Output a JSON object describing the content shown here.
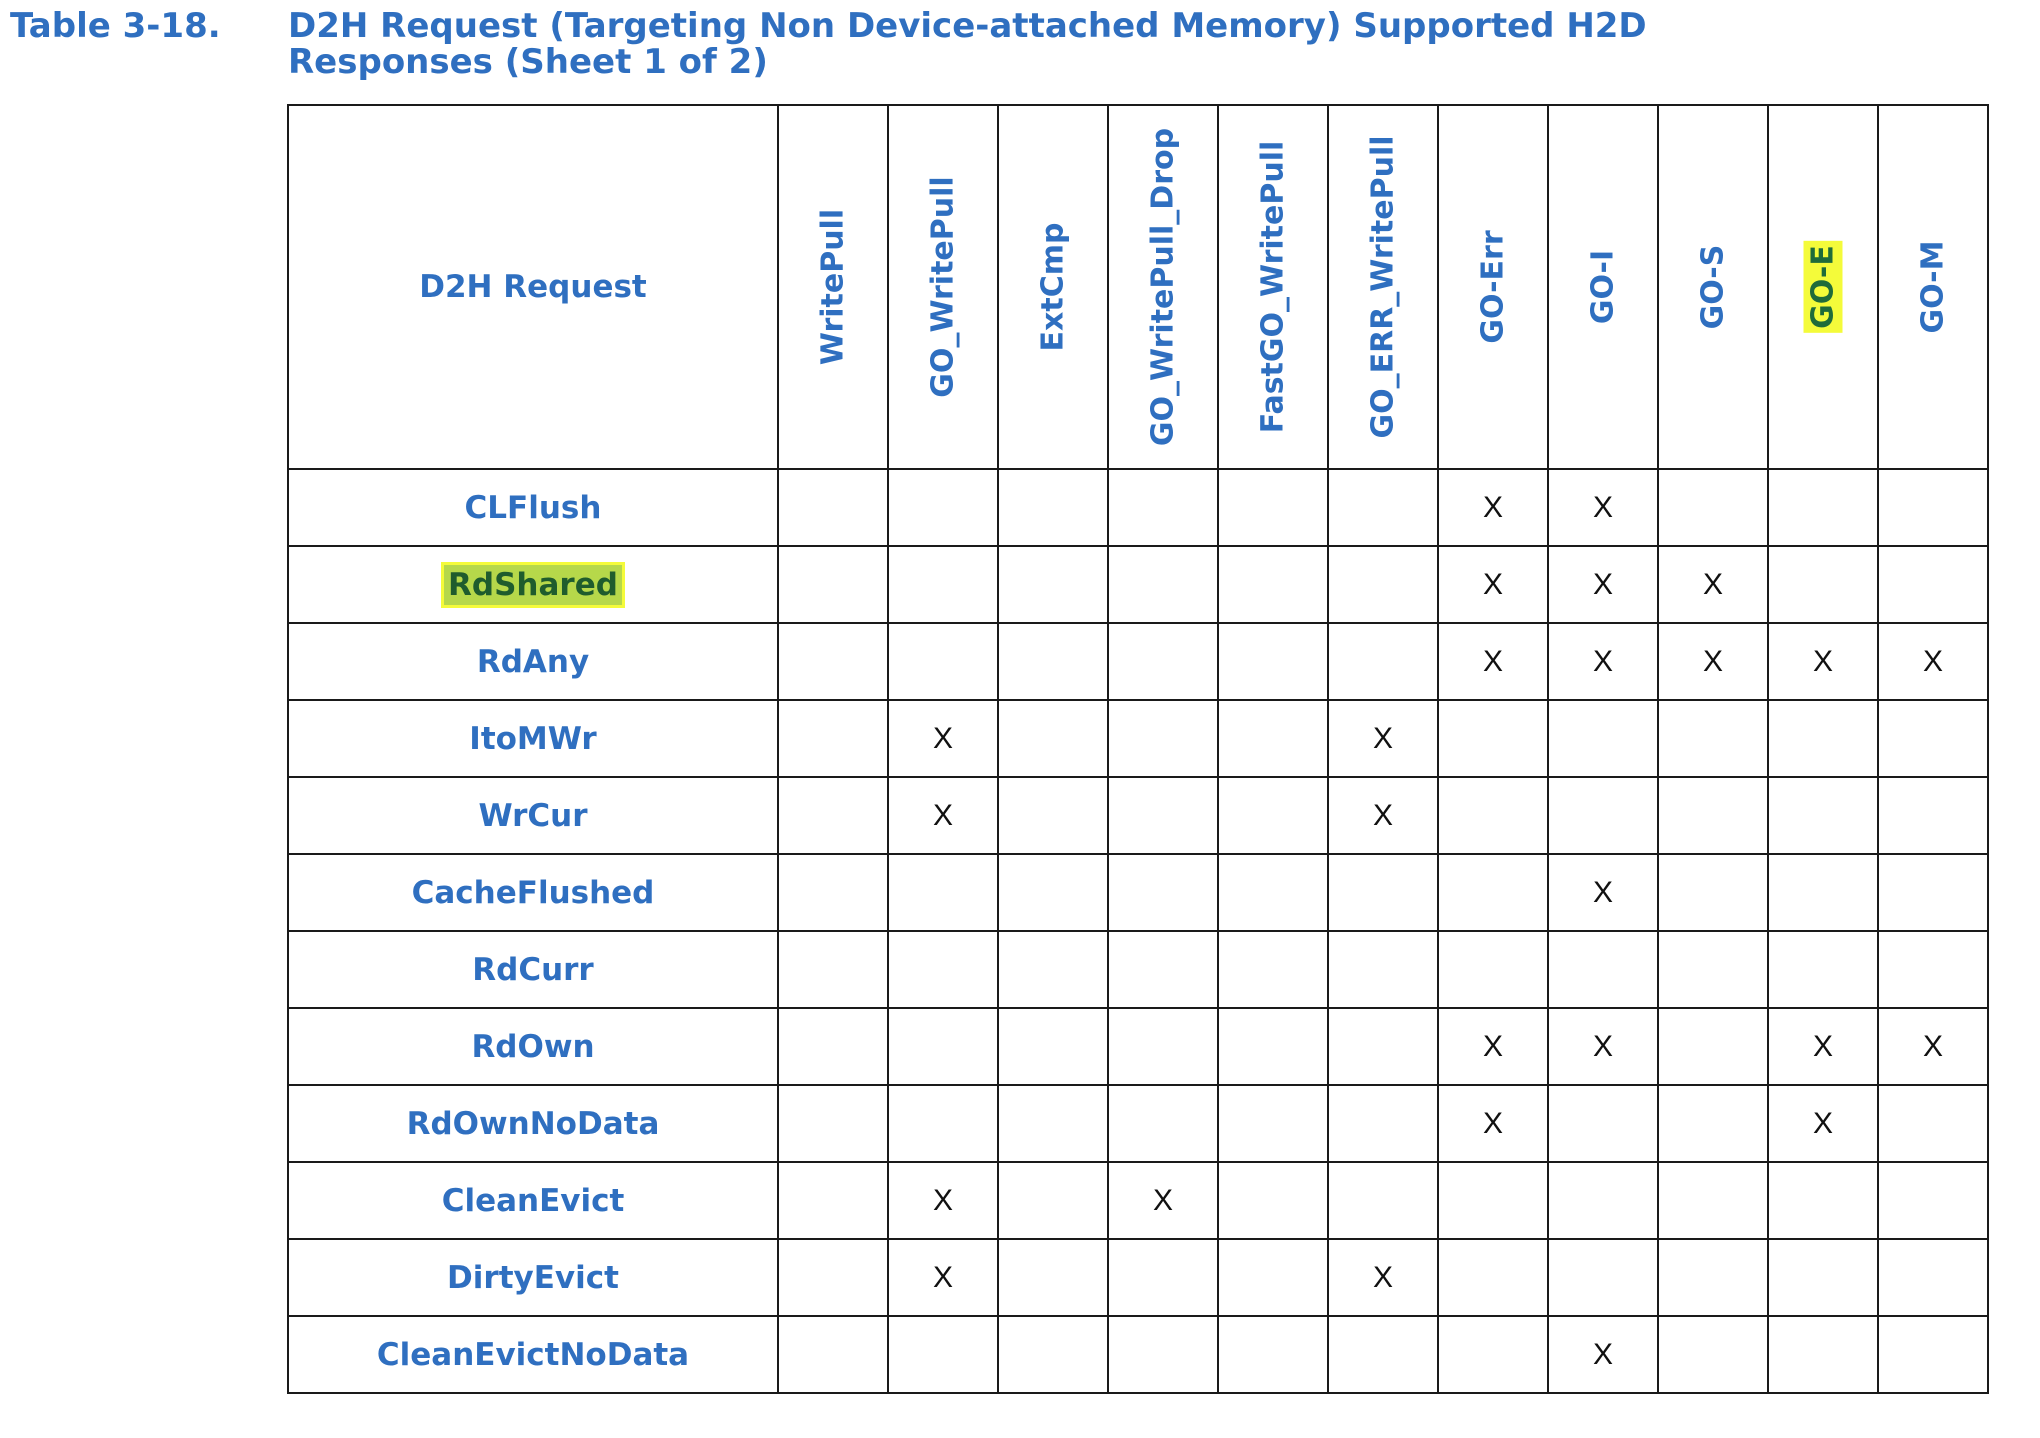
{
  "caption": {
    "number": "Table 3-18.",
    "title": "D2H Request (Targeting Non Device-attached Memory) Supported H2D Responses (Sheet 1 of 2)"
  },
  "table": {
    "row_header": "D2H Request",
    "columns": [
      "WritePull",
      "GO_WritePull",
      "ExtCmp",
      "GO_WritePull_Drop",
      "FastGO_WritePull",
      "GO_ERR_WritePull",
      "GO-Err",
      "GO-I",
      "GO-S",
      "GO-E",
      "GO-M"
    ],
    "highlighted_column": "GO-E",
    "rows": [
      {
        "name": "CLFlush",
        "cells": [
          "",
          "",
          "",
          "",
          "",
          "",
          "X",
          "X",
          "",
          "",
          ""
        ]
      },
      {
        "name": "RdShared",
        "cells": [
          "",
          "",
          "",
          "",
          "",
          "",
          "X",
          "X",
          "X",
          "",
          ""
        ],
        "highlighted": true
      },
      {
        "name": "RdAny",
        "cells": [
          "",
          "",
          "",
          "",
          "",
          "",
          "X",
          "X",
          "X",
          "X",
          "X"
        ]
      },
      {
        "name": "ItoMWr",
        "cells": [
          "",
          "X",
          "",
          "",
          "",
          "X",
          "",
          "",
          "",
          "",
          ""
        ]
      },
      {
        "name": "WrCur",
        "cells": [
          "",
          "X",
          "",
          "",
          "",
          "X",
          "",
          "",
          "",
          "",
          ""
        ]
      },
      {
        "name": "CacheFlushed",
        "cells": [
          "",
          "",
          "",
          "",
          "",
          "",
          "",
          "X",
          "",
          "",
          ""
        ]
      },
      {
        "name": "RdCurr",
        "cells": [
          "",
          "",
          "",
          "",
          "",
          "",
          "",
          "",
          "",
          "",
          ""
        ]
      },
      {
        "name": "RdOwn",
        "cells": [
          "",
          "",
          "",
          "",
          "",
          "",
          "X",
          "X",
          "",
          "X",
          "X"
        ]
      },
      {
        "name": "RdOwnNoData",
        "cells": [
          "",
          "",
          "",
          "",
          "",
          "",
          "X",
          "",
          "",
          "X",
          ""
        ]
      },
      {
        "name": "CleanEvict",
        "cells": [
          "",
          "X",
          "",
          "X",
          "",
          "",
          "",
          "",
          "",
          "",
          ""
        ]
      },
      {
        "name": "DirtyEvict",
        "cells": [
          "",
          "X",
          "",
          "",
          "",
          "X",
          "",
          "",
          "",
          "",
          ""
        ]
      },
      {
        "name": "CleanEvictNoData",
        "cells": [
          "",
          "",
          "",
          "",
          "",
          "",
          "",
          "X",
          "",
          "",
          ""
        ]
      }
    ]
  },
  "colors": {
    "text_blue": "#2f6fc0",
    "highlight_yellow": "#f4fb3a",
    "highlight_green": "#b6d84a"
  }
}
